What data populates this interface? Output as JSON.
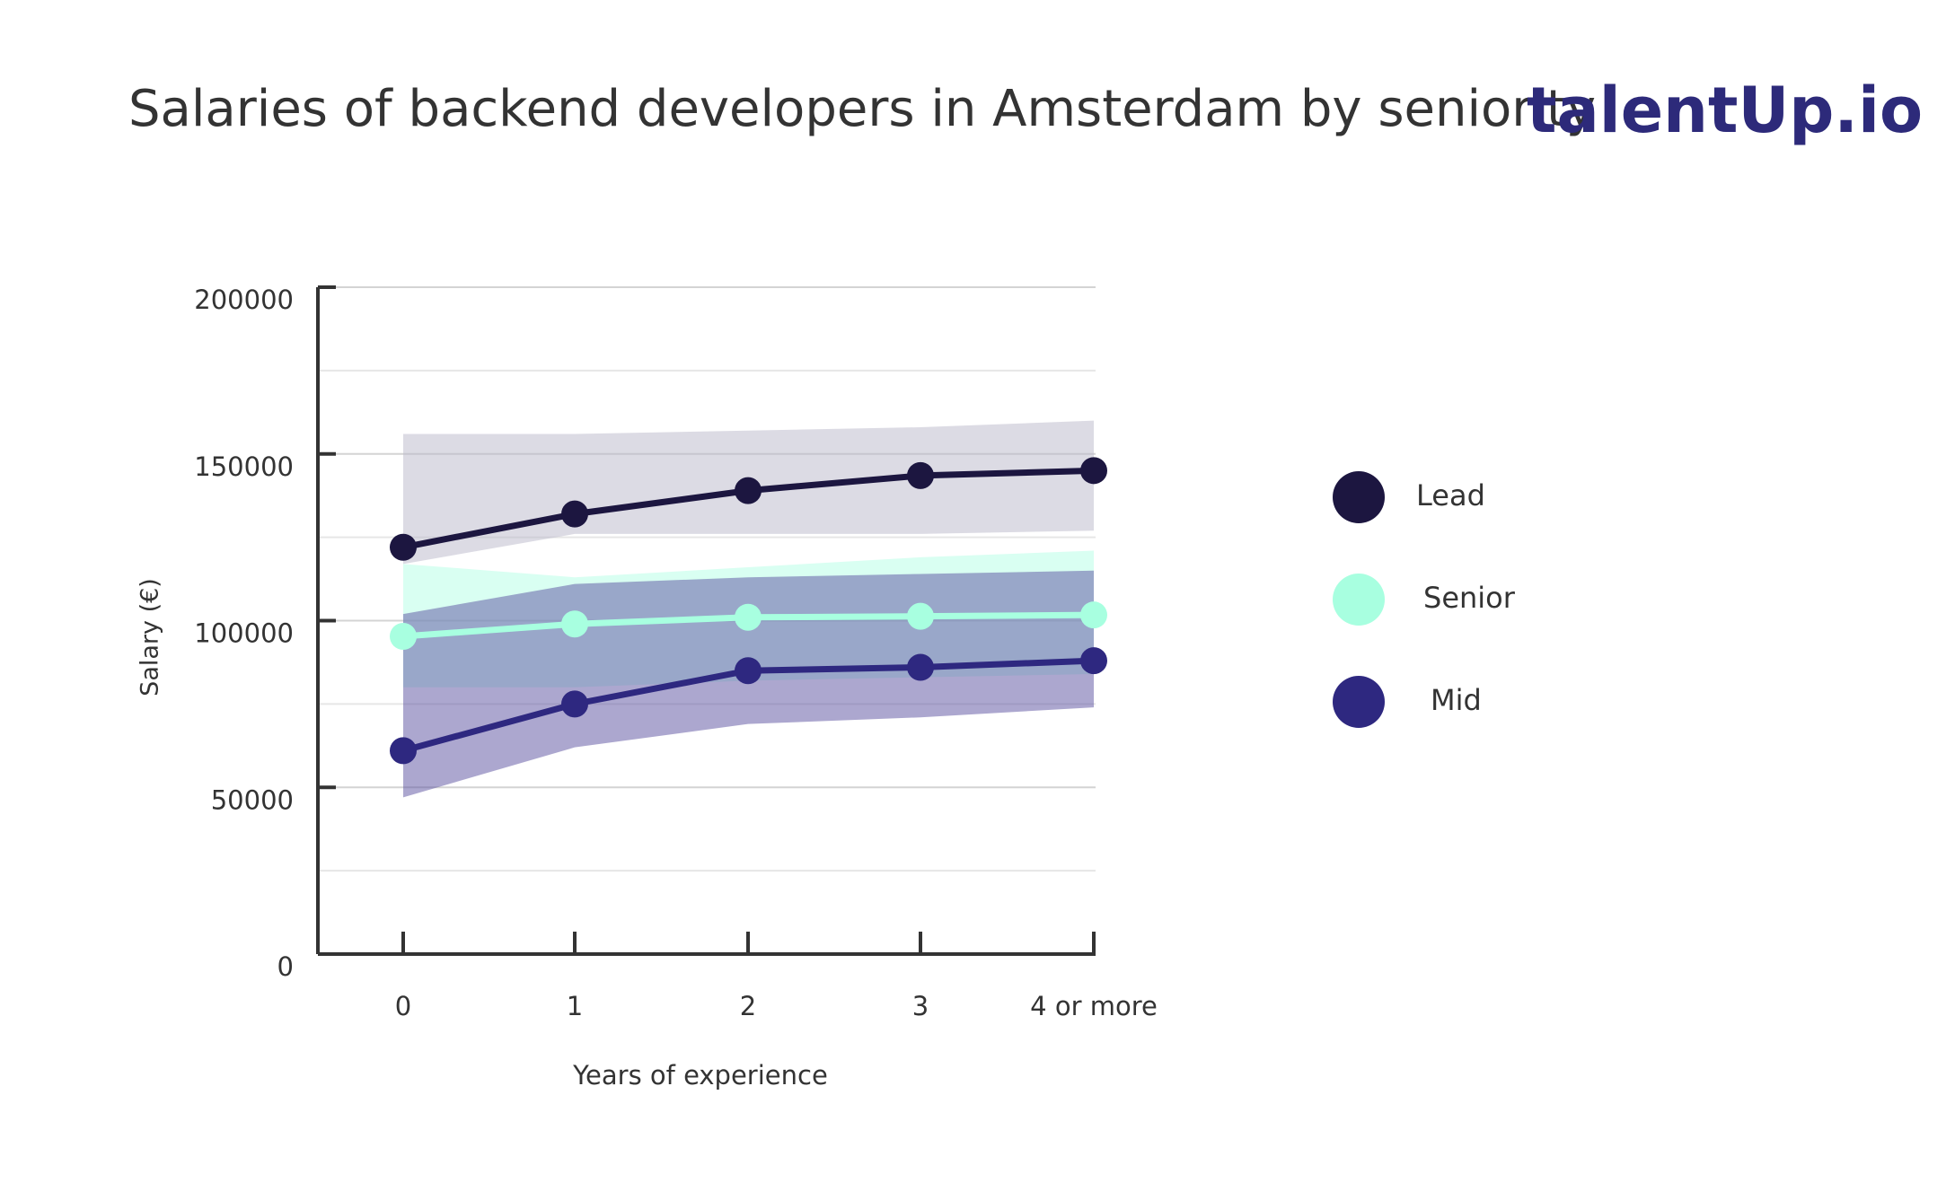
{
  "chart_data": {
    "type": "line",
    "title": "Salaries of backend developers in Amsterdam by seniority",
    "brand": "talentUp.io",
    "x_label": "Years of experience",
    "y_label": "Salary (€)",
    "categories": [
      "0",
      "1",
      "2",
      "3",
      "4 or more"
    ],
    "ylim": [
      0,
      200000
    ],
    "yticks": [
      0,
      50000,
      100000,
      150000,
      200000
    ],
    "grid_yticks": [
      25000,
      75000,
      125000,
      175000
    ],
    "grid": true,
    "legend": "right",
    "series": [
      {
        "name": "Lead",
        "color": "#1c1640",
        "band_color": "#b9b7c9",
        "values": [
          122000,
          132000,
          139000,
          143500,
          145000
        ],
        "low": [
          117000,
          126000,
          126000,
          126000,
          127000
        ],
        "high": [
          156000,
          156000,
          157000,
          158000,
          160000
        ]
      },
      {
        "name": "Senior",
        "color": "#a8ffe0",
        "band_color": "#b4ffe6",
        "values": [
          95300,
          99000,
          101000,
          101300,
          101700
        ],
        "low": [
          80000,
          80000,
          82000,
          83000,
          84000
        ],
        "high": [
          117000,
          113000,
          116000,
          119000,
          121000
        ]
      },
      {
        "name": "Mid",
        "color": "#2e2880",
        "band_color": "#5a50a0",
        "values": [
          61000,
          75000,
          85000,
          86000,
          88000
        ],
        "low": [
          47000,
          62000,
          69000,
          71000,
          74000
        ],
        "high": [
          102000,
          111000,
          113000,
          114000,
          115000
        ]
      }
    ]
  }
}
